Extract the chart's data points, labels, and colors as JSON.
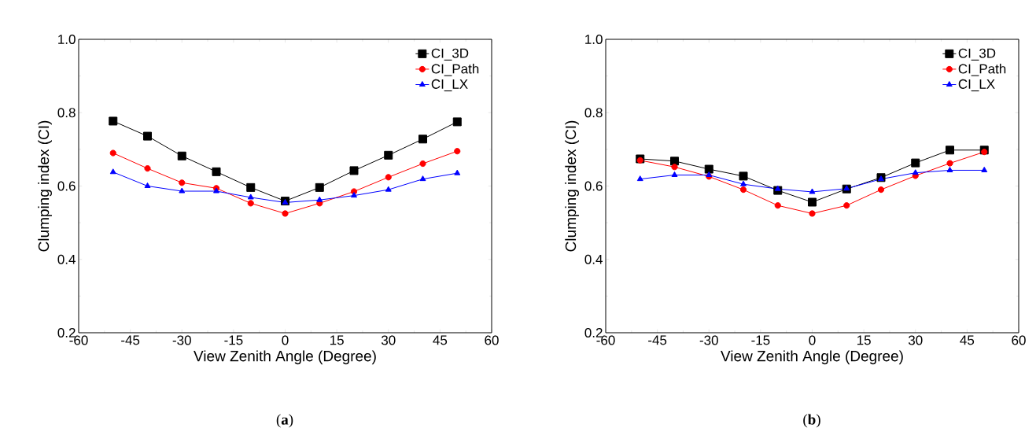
{
  "chart_data": [
    {
      "type": "line",
      "xlabel": "View Zenith Angle (Degree)",
      "ylabel": "Clumping index (CI)",
      "x": [
        -50,
        -40,
        -30,
        -20,
        -10,
        0,
        10,
        20,
        30,
        40,
        50
      ],
      "xlim": [
        -60,
        60
      ],
      "xticks": [
        -60,
        -45,
        -30,
        -15,
        0,
        15,
        30,
        45,
        60
      ],
      "ylim": [
        0.2,
        1.0
      ],
      "yticks": [
        {
          "value": 0.2,
          "label": "0.2"
        },
        {
          "value": 0.4,
          "label": "0.4"
        },
        {
          "value": 0.6,
          "label": "0.6"
        },
        {
          "value": 0.8,
          "label": "0.8"
        },
        {
          "value": 1.0,
          "label": "1.0"
        }
      ],
      "legend": "top right",
      "grid": false,
      "annotations": [
        "(**a**)"
      ],
      "series": [
        {
          "name": "CI_3D",
          "color": "#000000",
          "marker": "square",
          "values": [
            0.777,
            0.736,
            0.682,
            0.639,
            0.596,
            0.559,
            0.596,
            0.642,
            0.684,
            0.728,
            0.775
          ]
        },
        {
          "name": "CI_Path",
          "color": "#ff0000",
          "marker": "circle",
          "values": [
            0.69,
            0.648,
            0.609,
            0.594,
            0.553,
            0.525,
            0.553,
            0.585,
            0.624,
            0.661,
            0.695
          ]
        },
        {
          "name": "CI_LX",
          "color": "#0000ff",
          "marker": "triangle",
          "values": [
            0.638,
            0.6,
            0.586,
            0.586,
            0.569,
            0.555,
            0.562,
            0.574,
            0.59,
            0.619,
            0.635
          ]
        }
      ]
    },
    {
      "type": "line",
      "xlabel": "View Zenith Angle (Degree)",
      "ylabel": "Clumping index (CI)",
      "x": [
        -50,
        -40,
        -30,
        -20,
        -10,
        0,
        10,
        20,
        30,
        40,
        50
      ],
      "xlim": [
        -60,
        60
      ],
      "xticks": [
        -60,
        -45,
        -30,
        -15,
        0,
        15,
        30,
        45,
        60
      ],
      "ylim": [
        0.2,
        1.0
      ],
      "yticks": [
        {
          "value": 0.2,
          "label": "0.2"
        },
        {
          "value": 0.4,
          "label": "0.4"
        },
        {
          "value": 0.6,
          "label": "0.6"
        },
        {
          "value": 0.8,
          "label": "0.8"
        },
        {
          "value": 1.0,
          "label": "1.0"
        }
      ],
      "legend": "top right",
      "grid": false,
      "annotations": [
        "(**b**)"
      ],
      "series": [
        {
          "name": "CI_3D",
          "color": "#000000",
          "marker": "square",
          "values": [
            0.674,
            0.668,
            0.646,
            0.627,
            0.588,
            0.556,
            0.592,
            0.623,
            0.663,
            0.698,
            0.698
          ]
        },
        {
          "name": "CI_Path",
          "color": "#ff0000",
          "marker": "circle",
          "values": [
            0.67,
            0.652,
            0.626,
            0.59,
            0.547,
            0.525,
            0.547,
            0.59,
            0.628,
            0.662,
            0.693
          ]
        },
        {
          "name": "CI_LX",
          "color": "#0000ff",
          "marker": "triangle",
          "values": [
            0.619,
            0.63,
            0.63,
            0.605,
            0.592,
            0.584,
            0.593,
            0.619,
            0.636,
            0.643,
            0.643
          ]
        }
      ]
    }
  ]
}
